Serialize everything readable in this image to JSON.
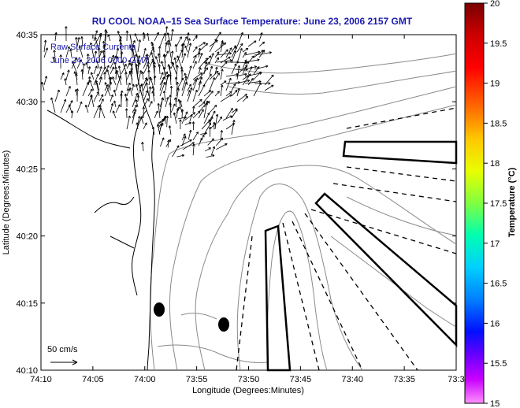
{
  "title": "RU COOL  NOAA–15  Sea Surface Temperature:  June 23, 2006 2157 GMT",
  "annotation_line1": "Raw Surface Currents",
  "annotation_line2": "June 24, 2006 0000 GMT",
  "scale_label": "50 cm/s",
  "x_axis_label": "Longitude (Degrees:Minutes)",
  "y_axis_label": "Latitude (Degrees:Minutes)",
  "colorbar_label": "Temperature (°C)",
  "x_ticks": [
    "74:10",
    "74:05",
    "74:00",
    "73:55",
    "73:50",
    "73:45",
    "73:40",
    "73:35",
    "73:3"
  ],
  "y_ticks": [
    "40:35",
    "40:30",
    "40:25",
    "40:20",
    "40:15",
    "40:10"
  ],
  "colorbar_ticks": [
    "20",
    "19.5",
    "19",
    "18.5",
    "18",
    "17.5",
    "17",
    "16.5",
    "16",
    "15.5",
    "15"
  ],
  "colors": {
    "title": "#1a1ab0",
    "coast": "#000000",
    "contour": "#808080"
  },
  "colorbar_range": [
    15,
    20
  ]
}
